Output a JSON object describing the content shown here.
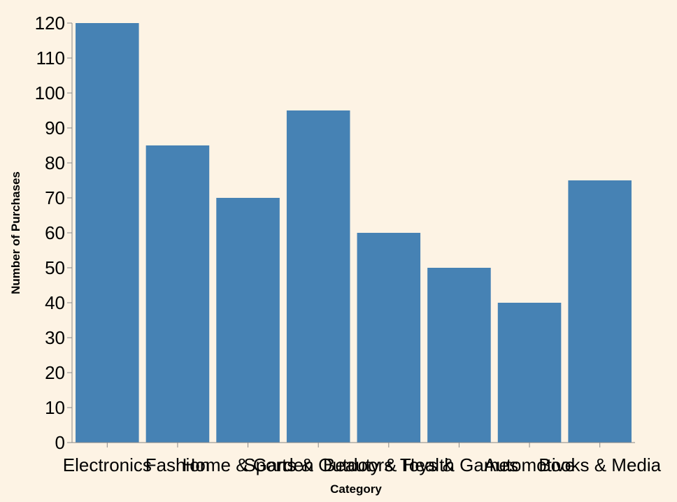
{
  "chart_data": {
    "type": "bar",
    "categories": [
      "Electronics",
      "Fashion",
      "Home & Garden",
      "Sports & Outdoors",
      "Beauty & Health",
      "Toys & Games",
      "Automotive",
      "Books & Media"
    ],
    "values": [
      120,
      85,
      70,
      95,
      60,
      50,
      40,
      75
    ],
    "xlabel": "Category",
    "ylabel": "Number of Purchases",
    "ylim": [
      0,
      120
    ],
    "yticks": [
      0,
      10,
      20,
      30,
      40,
      50,
      60,
      70,
      80,
      90,
      100,
      110,
      120
    ],
    "grid": false,
    "legend": "none"
  },
  "colors": {
    "background": "#fdf3e4",
    "bar": "#4682b4",
    "axis": "#888888",
    "text": "#000000"
  }
}
